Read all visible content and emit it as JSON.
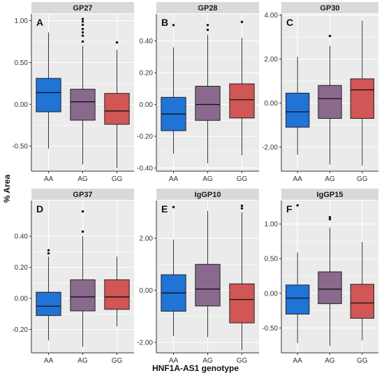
{
  "figure": {
    "ylabel": "% Area",
    "xlabel": "HNF1A-AS1 genotype"
  },
  "colors": {
    "AA": "#1f74d6",
    "AG": "#8a6a8c",
    "GG": "#d15656",
    "panel_background": "#ebebeb",
    "strip_background": "#d9d9d9",
    "gridline": "#ffffff"
  },
  "chart_data": [
    {
      "type": "box",
      "title": "GP27",
      "panel_label": "A",
      "categories": [
        "AA",
        "AG",
        "GG"
      ],
      "ylim": [
        -0.8,
        1.08
      ],
      "yticks": [
        -0.5,
        0.0,
        0.5,
        1.0
      ],
      "ytick_labels": [
        "-0.50",
        "0.00",
        "0.50",
        "1.00"
      ],
      "series": [
        {
          "category": "AA",
          "min": -0.53,
          "q1": -0.09,
          "median": 0.14,
          "q3": 0.31,
          "max": 0.86,
          "outliers": []
        },
        {
          "category": "AG",
          "min": -0.72,
          "q1": -0.19,
          "median": 0.03,
          "q3": 0.18,
          "max": 0.7,
          "outliers": [
            0.75,
            0.82,
            0.86,
            0.9,
            0.95,
            0.99,
            1.02
          ]
        },
        {
          "category": "GG",
          "min": -0.76,
          "q1": -0.24,
          "median": -0.08,
          "q3": 0.13,
          "max": 0.65,
          "outliers": [
            0.74
          ]
        }
      ]
    },
    {
      "type": "box",
      "title": "GP28",
      "panel_label": "B",
      "categories": [
        "AA",
        "AG",
        "GG"
      ],
      "ylim": [
        -0.42,
        0.57
      ],
      "yticks": [
        -0.4,
        -0.2,
        0.0,
        0.2,
        0.4
      ],
      "ytick_labels": [
        "-0.40",
        "-0.20",
        "0.00",
        "0.20",
        "0.40"
      ],
      "series": [
        {
          "category": "AA",
          "min": -0.31,
          "q1": -0.165,
          "median": -0.06,
          "q3": 0.045,
          "max": 0.36,
          "outliers": [
            0.5
          ]
        },
        {
          "category": "AG",
          "min": -0.37,
          "q1": -0.1,
          "median": 0.0,
          "q3": 0.115,
          "max": 0.44,
          "outliers": [
            0.47,
            0.5
          ]
        },
        {
          "category": "GG",
          "min": -0.32,
          "q1": -0.085,
          "median": 0.03,
          "q3": 0.13,
          "max": 0.42,
          "outliers": [
            0.52
          ]
        }
      ]
    },
    {
      "type": "box",
      "title": "GP30",
      "panel_label": "C",
      "categories": [
        "AA",
        "AG",
        "GG"
      ],
      "ylim": [
        -3.1,
        4.05
      ],
      "yticks": [
        -2.0,
        0.0,
        2.0,
        4.0
      ],
      "ytick_labels": [
        "-2.00",
        "0.00",
        "2.00",
        "4.00"
      ],
      "series": [
        {
          "category": "AA",
          "min": -2.35,
          "q1": -1.1,
          "median": -0.4,
          "q3": 0.45,
          "max": 2.1,
          "outliers": []
        },
        {
          "category": "AG",
          "min": -2.8,
          "q1": -0.7,
          "median": 0.2,
          "q3": 0.8,
          "max": 2.6,
          "outliers": [
            3.05
          ]
        },
        {
          "category": "GG",
          "min": -2.85,
          "q1": -0.7,
          "median": 0.6,
          "q3": 1.1,
          "max": 3.75,
          "outliers": []
        }
      ]
    },
    {
      "type": "box",
      "title": "GP37",
      "panel_label": "D",
      "categories": [
        "AA",
        "AG",
        "GG"
      ],
      "ylim": [
        -0.35,
        0.63
      ],
      "yticks": [
        -0.2,
        0.0,
        0.2,
        0.4
      ],
      "ytick_labels": [
        "-0.20",
        "0.00",
        "0.20",
        "0.40"
      ],
      "series": [
        {
          "category": "AA",
          "min": -0.27,
          "q1": -0.11,
          "median": -0.05,
          "q3": 0.04,
          "max": 0.27,
          "outliers": [
            0.29,
            0.31
          ]
        },
        {
          "category": "AG",
          "min": -0.31,
          "q1": -0.08,
          "median": 0.01,
          "q3": 0.12,
          "max": 0.4,
          "outliers": [
            0.43,
            0.56
          ]
        },
        {
          "category": "GG",
          "min": -0.18,
          "q1": -0.07,
          "median": 0.01,
          "q3": 0.12,
          "max": 0.27,
          "outliers": []
        }
      ]
    },
    {
      "type": "box",
      "title": "IgGP10",
      "panel_label": "E",
      "categories": [
        "AA",
        "AG",
        "GG"
      ],
      "ylim": [
        -2.4,
        3.45
      ],
      "yticks": [
        -2.0,
        0.0,
        2.0
      ],
      "ytick_labels": [
        "-2.00",
        "0.00",
        "2.00"
      ],
      "series": [
        {
          "category": "AA",
          "min": -1.75,
          "q1": -0.8,
          "median": -0.1,
          "q3": 0.6,
          "max": 1.95,
          "outliers": [
            3.2
          ]
        },
        {
          "category": "AG",
          "min": -1.8,
          "q1": -0.6,
          "median": 0.05,
          "q3": 1.0,
          "max": 3.05,
          "outliers": []
        },
        {
          "category": "GG",
          "min": -2.3,
          "q1": -1.25,
          "median": -0.35,
          "q3": 0.25,
          "max": 3.0,
          "outliers": [
            3.15,
            3.25
          ]
        }
      ]
    },
    {
      "type": "box",
      "title": "IgGP15",
      "panel_label": "F",
      "categories": [
        "AA",
        "AG",
        "GG"
      ],
      "ylim": [
        -0.86,
        1.34
      ],
      "yticks": [
        -0.5,
        0.0,
        0.5,
        1.0
      ],
      "ytick_labels": [
        "-0.50",
        "0.00",
        "0.50",
        "1.00"
      ],
      "series": [
        {
          "category": "AA",
          "min": -0.72,
          "q1": -0.3,
          "median": -0.07,
          "q3": 0.12,
          "max": 0.59,
          "outliers": [
            1.27
          ]
        },
        {
          "category": "AG",
          "min": -0.76,
          "q1": -0.15,
          "median": 0.06,
          "q3": 0.31,
          "max": 0.95,
          "outliers": [
            1.07,
            1.1
          ]
        },
        {
          "category": "GG",
          "min": -0.68,
          "q1": -0.36,
          "median": -0.14,
          "q3": 0.13,
          "max": 0.74,
          "outliers": []
        }
      ]
    }
  ]
}
